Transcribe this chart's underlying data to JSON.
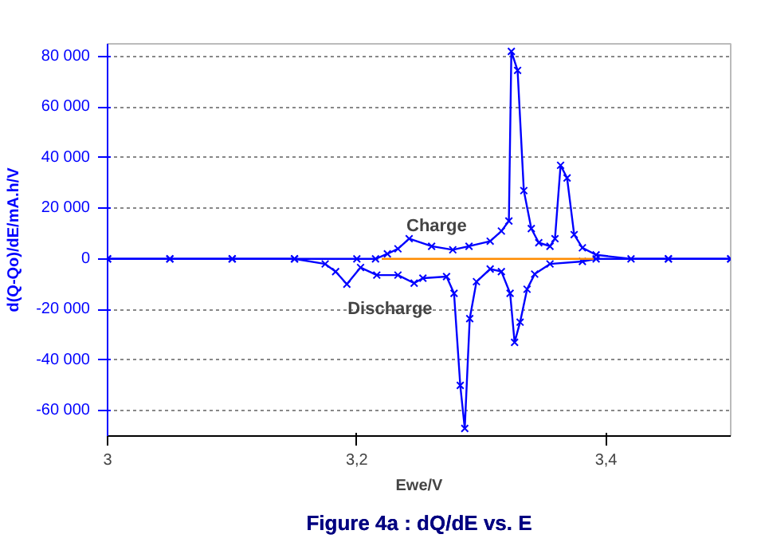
{
  "chart_data": {
    "type": "line",
    "title": "Figure 4a : dQ/dE vs. E",
    "xlabel": "Ewe/V",
    "ylabel": "d(Q-Qo)/dE/mA.h/V",
    "xlim": [
      3,
      3.5
    ],
    "xticks": [
      3,
      {
        "value": 3.2,
        "label": "3,2"
      },
      {
        "value": 3.4,
        "label": "3,4"
      }
    ],
    "ylim": [
      -70000,
      85000
    ],
    "yticks": [
      {
        "value": -60000,
        "label": "-60 000"
      },
      {
        "value": -40000,
        "label": "-40 000"
      },
      {
        "value": -20000,
        "label": "-20 000"
      },
      0,
      {
        "value": 20000,
        "label": "20 000"
      },
      {
        "value": 40000,
        "label": "40 000"
      },
      {
        "value": 60000,
        "label": "60 000"
      },
      {
        "value": 80000,
        "label": "80 000"
      }
    ],
    "grid": "y",
    "marker": "cross",
    "line_style": "solid",
    "series": [
      {
        "name": "Charge",
        "color": "#0000ff",
        "x": [
          3.0,
          3.05,
          3.1,
          3.15,
          3.2,
          3.215,
          3.2245,
          3.233,
          3.242,
          3.26,
          3.277,
          3.29,
          3.307,
          3.316,
          3.322,
          3.324,
          3.329,
          3.334,
          3.34,
          3.346,
          3.355,
          3.359,
          3.3635,
          3.3687,
          3.3744,
          3.381,
          3.392,
          3.42,
          3.45,
          3.5
        ],
        "values": [
          0,
          0,
          0,
          0,
          0,
          0,
          2000,
          4000,
          8000,
          5000,
          3600,
          5000,
          7000,
          11000,
          15000,
          82000,
          74500,
          27000,
          12000,
          6400,
          5000,
          8000,
          37000,
          32000,
          9600,
          4400,
          1600,
          0,
          0,
          0
        ]
      },
      {
        "name": "Discharge",
        "color": "#0000ff",
        "x": [
          3.0,
          3.05,
          3.1,
          3.15,
          3.1746,
          3.183,
          3.192,
          3.203,
          3.216,
          3.233,
          3.246,
          3.253,
          3.272,
          3.278,
          3.283,
          3.2866,
          3.2906,
          3.296,
          3.307,
          3.316,
          3.323,
          3.3266,
          3.331,
          3.3366,
          3.3427,
          3.355,
          3.381,
          3.392,
          3.45,
          3.5
        ],
        "values": [
          0,
          0,
          0,
          0,
          -2000,
          -5000,
          -10000,
          -3400,
          -6400,
          -6400,
          -9600,
          -7600,
          -7000,
          -13600,
          -50000,
          -67000,
          -23600,
          -9000,
          -4000,
          -5000,
          -13600,
          -33000,
          -25000,
          -12000,
          -6000,
          -2000,
          -1000,
          0,
          0,
          0
        ]
      },
      {
        "color": "#ff8c00",
        "marker": "none",
        "x": [
          3.22,
          3.39
        ],
        "values": [
          0,
          0
        ]
      }
    ]
  }
}
